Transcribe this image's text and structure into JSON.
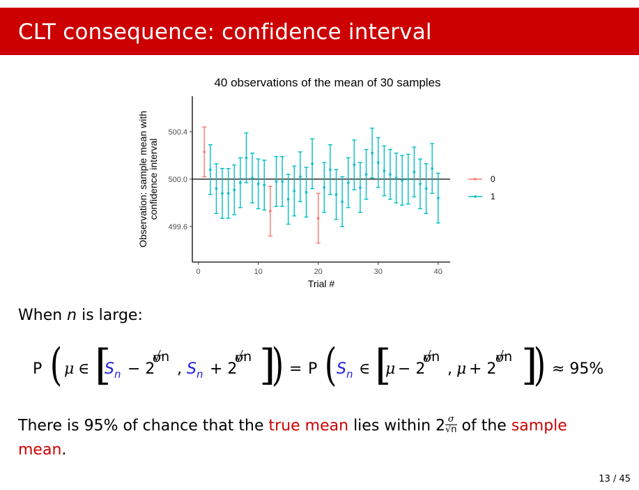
{
  "slide": {
    "title": "CLT consequence: confidence interval",
    "page": "13 / 45"
  },
  "text": {
    "when_prefix": "When ",
    "when_var": "n",
    "when_suffix": " is large:",
    "line1_a": "There is 95% of chance that the ",
    "line1_red1": "true mean",
    "line1_b": " lies within 2",
    "line1_c": " of the ",
    "line1_red2": "sample",
    "line2_red": "mean",
    "line2_end": "."
  },
  "formula": {
    "P": "P",
    "mu": "μ",
    "in": "∈",
    "Sn": "S",
    "sub_n": "n",
    "minus2": "− 2",
    "plus2": "+ 2",
    "comma": ",",
    "sigma": "σ",
    "sqrtn": "√n",
    "equals": "=",
    "approx": "≈ 95%"
  },
  "colors": {
    "accent": "#cc0000",
    "series0": "#f8766d",
    "series1": "#00bfc4",
    "blue": "#2020dd"
  },
  "chart_data": {
    "type": "scatter",
    "title": "40  observations of the mean of  30  samples",
    "xlabel": "Trial #",
    "ylabel_line1": "Observation: sample mean with",
    "ylabel_line2": "confidence interval",
    "xlim": [
      -1,
      42
    ],
    "ylim": [
      499.3,
      500.7
    ],
    "xticks": [
      0,
      10,
      20,
      30,
      40
    ],
    "yticks": [
      499.6,
      500.0,
      500.4
    ],
    "ytick_labels": [
      "499.6",
      "500.0",
      "500.4"
    ],
    "hline": 500.0,
    "grid": false,
    "legend_position": "right",
    "legend": [
      {
        "label": "0",
        "color": "#f8766d"
      },
      {
        "label": "1",
        "color": "#00bfc4"
      }
    ],
    "half_width": 0.21,
    "points": [
      {
        "x": 1,
        "mean": 500.23,
        "group": "0"
      },
      {
        "x": 2,
        "mean": 500.08,
        "group": "1"
      },
      {
        "x": 3,
        "mean": 499.92,
        "group": "1"
      },
      {
        "x": 4,
        "mean": 499.88,
        "group": "1"
      },
      {
        "x": 5,
        "mean": 499.88,
        "group": "1"
      },
      {
        "x": 6,
        "mean": 499.91,
        "group": "1"
      },
      {
        "x": 7,
        "mean": 499.97,
        "group": "1"
      },
      {
        "x": 8,
        "mean": 500.18,
        "group": "1"
      },
      {
        "x": 9,
        "mean": 500.01,
        "group": "1"
      },
      {
        "x": 10,
        "mean": 499.96,
        "group": "1"
      },
      {
        "x": 11,
        "mean": 499.95,
        "group": "1"
      },
      {
        "x": 12,
        "mean": 499.73,
        "group": "0"
      },
      {
        "x": 13,
        "mean": 499.98,
        "group": "1"
      },
      {
        "x": 14,
        "mean": 499.98,
        "group": "1"
      },
      {
        "x": 15,
        "mean": 499.83,
        "group": "1"
      },
      {
        "x": 16,
        "mean": 499.9,
        "group": "1"
      },
      {
        "x": 17,
        "mean": 500.02,
        "group": "1"
      },
      {
        "x": 18,
        "mean": 499.89,
        "group": "1"
      },
      {
        "x": 19,
        "mean": 500.13,
        "group": "1"
      },
      {
        "x": 20,
        "mean": 499.67,
        "group": "0"
      },
      {
        "x": 21,
        "mean": 499.93,
        "group": "1"
      },
      {
        "x": 22,
        "mean": 500.08,
        "group": "1"
      },
      {
        "x": 23,
        "mean": 499.87,
        "group": "1"
      },
      {
        "x": 24,
        "mean": 499.81,
        "group": "1"
      },
      {
        "x": 25,
        "mean": 499.97,
        "group": "1"
      },
      {
        "x": 26,
        "mean": 500.12,
        "group": "1"
      },
      {
        "x": 27,
        "mean": 499.93,
        "group": "1"
      },
      {
        "x": 28,
        "mean": 500.04,
        "group": "1"
      },
      {
        "x": 29,
        "mean": 500.22,
        "group": "1"
      },
      {
        "x": 30,
        "mean": 500.14,
        "group": "1"
      },
      {
        "x": 31,
        "mean": 500.07,
        "group": "1"
      },
      {
        "x": 32,
        "mean": 500.04,
        "group": "1"
      },
      {
        "x": 33,
        "mean": 500.01,
        "group": "1"
      },
      {
        "x": 34,
        "mean": 499.99,
        "group": "1"
      },
      {
        "x": 35,
        "mean": 500.0,
        "group": "1"
      },
      {
        "x": 36,
        "mean": 500.06,
        "group": "1"
      },
      {
        "x": 37,
        "mean": 499.96,
        "group": "1"
      },
      {
        "x": 38,
        "mean": 499.92,
        "group": "1"
      },
      {
        "x": 39,
        "mean": 500.09,
        "group": "1"
      },
      {
        "x": 40,
        "mean": 499.84,
        "group": "1"
      }
    ]
  }
}
